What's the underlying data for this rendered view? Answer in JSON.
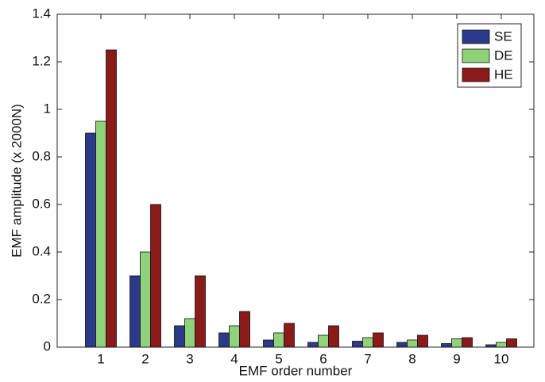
{
  "chart_data": {
    "type": "bar",
    "xlabel": "EMF order number",
    "ylabel": "EMF amplitude (x 2000N)",
    "categories": [
      "1",
      "2",
      "3",
      "4",
      "5",
      "6",
      "7",
      "8",
      "9",
      "10"
    ],
    "series": [
      {
        "name": "SE",
        "color": "#2b3a8a",
        "values": [
          0.9,
          0.3,
          0.09,
          0.06,
          0.03,
          0.02,
          0.025,
          0.02,
          0.015,
          0.01
        ]
      },
      {
        "name": "DE",
        "color": "#8fd27a",
        "values": [
          0.95,
          0.4,
          0.12,
          0.09,
          0.06,
          0.05,
          0.04,
          0.03,
          0.035,
          0.02
        ]
      },
      {
        "name": "HE",
        "color": "#8b1a1a",
        "values": [
          1.25,
          0.6,
          0.3,
          0.15,
          0.1,
          0.09,
          0.06,
          0.05,
          0.04,
          0.035
        ]
      }
    ],
    "ylim": [
      0,
      1.4
    ],
    "yticks": [
      0,
      0.2,
      0.4,
      0.6,
      0.8,
      1,
      1.2,
      1.4
    ],
    "grid": false,
    "legend": "top-right"
  }
}
